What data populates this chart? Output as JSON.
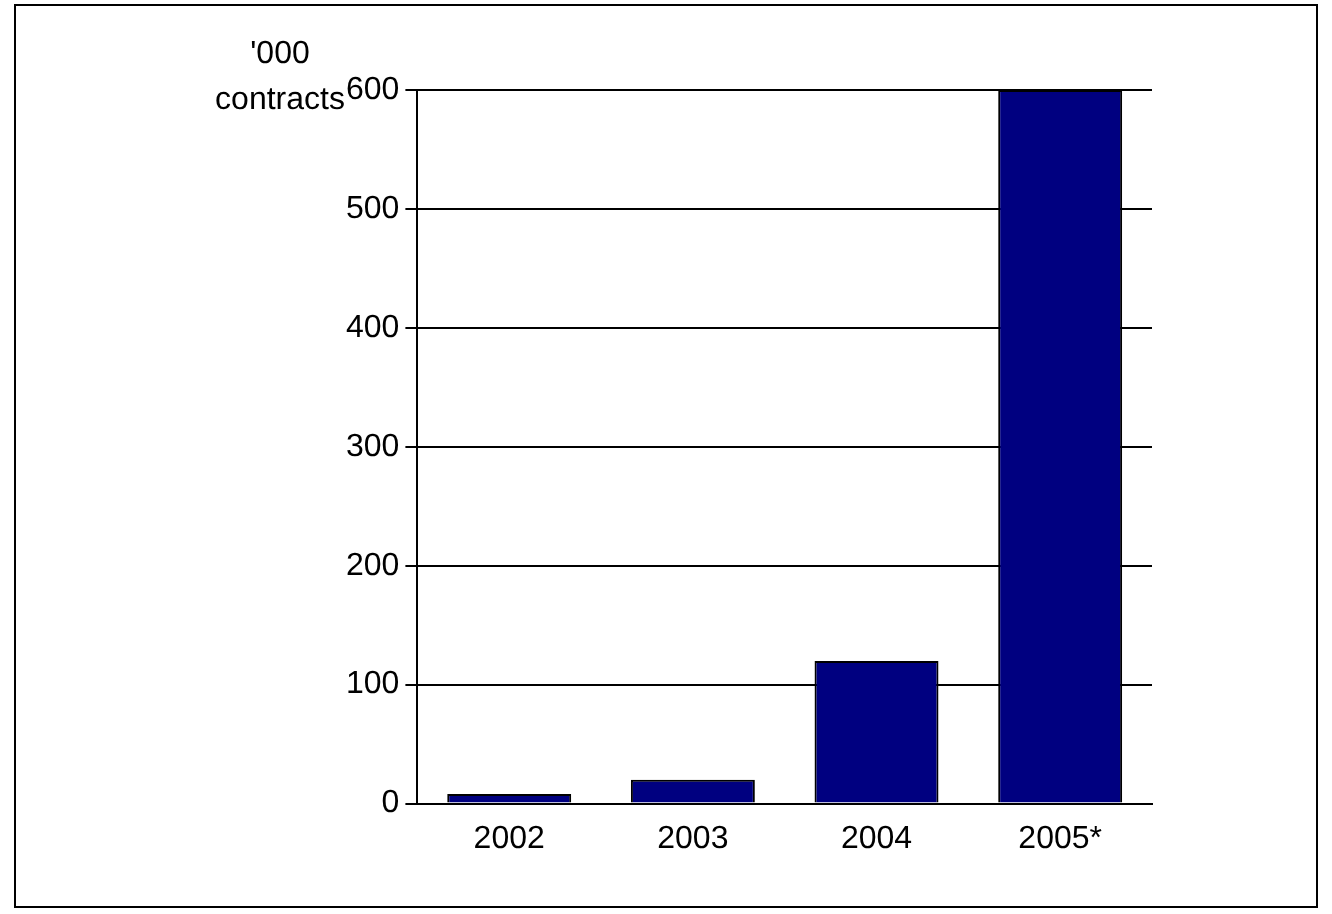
{
  "chart_data": {
    "type": "bar",
    "ylabel": "'000 contracts",
    "categories": [
      "2002",
      "2003",
      "2004",
      "2005*"
    ],
    "values": [
      8,
      20,
      120,
      600
    ],
    "color": "#000080",
    "ylim": [
      0,
      600
    ],
    "yticks": [
      0,
      100,
      200,
      300,
      400,
      500,
      600
    ],
    "grid": "y",
    "legend": false
  }
}
